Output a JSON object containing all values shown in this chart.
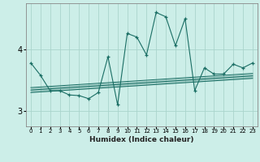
{
  "xlabel": "Humidex (Indice chaleur)",
  "bg_color": "#cceee8",
  "grid_color": "#aad4cc",
  "line_color": "#1a6e64",
  "x": [
    0,
    1,
    2,
    3,
    4,
    5,
    6,
    7,
    8,
    9,
    10,
    11,
    12,
    13,
    14,
    15,
    16,
    17,
    18,
    19,
    20,
    21,
    22,
    23
  ],
  "y_main": [
    3.78,
    3.58,
    3.33,
    3.33,
    3.26,
    3.25,
    3.2,
    3.3,
    3.88,
    3.1,
    4.26,
    4.2,
    3.91,
    4.6,
    4.53,
    4.06,
    4.5,
    3.33,
    3.7,
    3.6,
    3.6,
    3.76,
    3.7,
    3.78
  ],
  "y_lower": [
    3.3,
    3.31,
    3.32,
    3.33,
    3.34,
    3.35,
    3.36,
    3.37,
    3.38,
    3.39,
    3.4,
    3.41,
    3.42,
    3.43,
    3.44,
    3.45,
    3.46,
    3.47,
    3.48,
    3.49,
    3.5,
    3.51,
    3.52,
    3.53
  ],
  "y_mid": [
    3.34,
    3.35,
    3.36,
    3.37,
    3.38,
    3.39,
    3.4,
    3.41,
    3.42,
    3.43,
    3.44,
    3.45,
    3.46,
    3.47,
    3.48,
    3.49,
    3.5,
    3.51,
    3.52,
    3.53,
    3.54,
    3.55,
    3.56,
    3.57
  ],
  "y_upper": [
    3.38,
    3.39,
    3.4,
    3.41,
    3.42,
    3.43,
    3.44,
    3.45,
    3.46,
    3.47,
    3.48,
    3.49,
    3.5,
    3.51,
    3.52,
    3.53,
    3.54,
    3.55,
    3.56,
    3.57,
    3.58,
    3.59,
    3.6,
    3.61
  ],
  "yticks": [
    3,
    4
  ],
  "ylim": [
    2.75,
    4.75
  ],
  "xlim": [
    -0.5,
    23.5
  ]
}
